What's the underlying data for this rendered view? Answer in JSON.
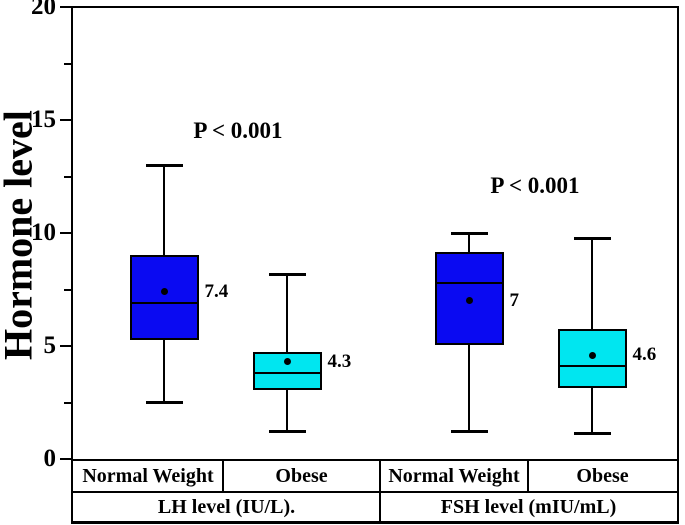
{
  "chart_data": {
    "type": "boxplot",
    "title": "",
    "ylabel": "Hormone level",
    "xlabel": "",
    "ylim": [
      0,
      20
    ],
    "ytick_values": [
      0,
      5,
      10,
      15,
      20
    ],
    "ytick_labels": [
      "0",
      "5",
      "10",
      "15",
      "20"
    ],
    "minor_tick_values": [
      2.5,
      7.5,
      12.5,
      17.5
    ],
    "grid": "off",
    "legend": "none",
    "colors": {
      "normal_weight_fill": "#0a0af2",
      "obese_fill": "#00e6f0",
      "line_color": "#000000",
      "background": "#ffffff"
    },
    "groups": [
      {
        "label": "LH level (IU/L).",
        "annotation": "P < 0.001",
        "annotation_y": 14.5
      },
      {
        "label": "FSH level (mIU/mL)",
        "annotation": "P < 0.001",
        "annotation_y": 12.1
      }
    ],
    "boxes": [
      {
        "group": 0,
        "category": "Normal Weight",
        "fill": "#0a0af2",
        "whisker_low": 2.5,
        "q1": 5.3,
        "median": 6.9,
        "q3": 9.0,
        "whisker_high": 13.0,
        "mean": 7.4,
        "mean_label": "7.4"
      },
      {
        "group": 0,
        "category": "Obese",
        "fill": "#00e6f0",
        "whisker_low": 1.2,
        "q1": 3.1,
        "median": 3.8,
        "q3": 4.7,
        "whisker_high": 8.2,
        "mean": 4.3,
        "mean_label": "4.3"
      },
      {
        "group": 1,
        "category": "Normal Weight",
        "fill": "#0a0af2",
        "whisker_low": 1.2,
        "q1": 5.1,
        "median": 7.8,
        "q3": 9.1,
        "whisker_high": 10.0,
        "mean": 7.0,
        "mean_label": "7"
      },
      {
        "group": 1,
        "category": "Obese",
        "fill": "#00e6f0",
        "whisker_low": 1.1,
        "q1": 3.2,
        "median": 4.1,
        "q3": 5.7,
        "whisker_high": 9.8,
        "mean": 4.6,
        "mean_label": "4.6"
      }
    ]
  }
}
